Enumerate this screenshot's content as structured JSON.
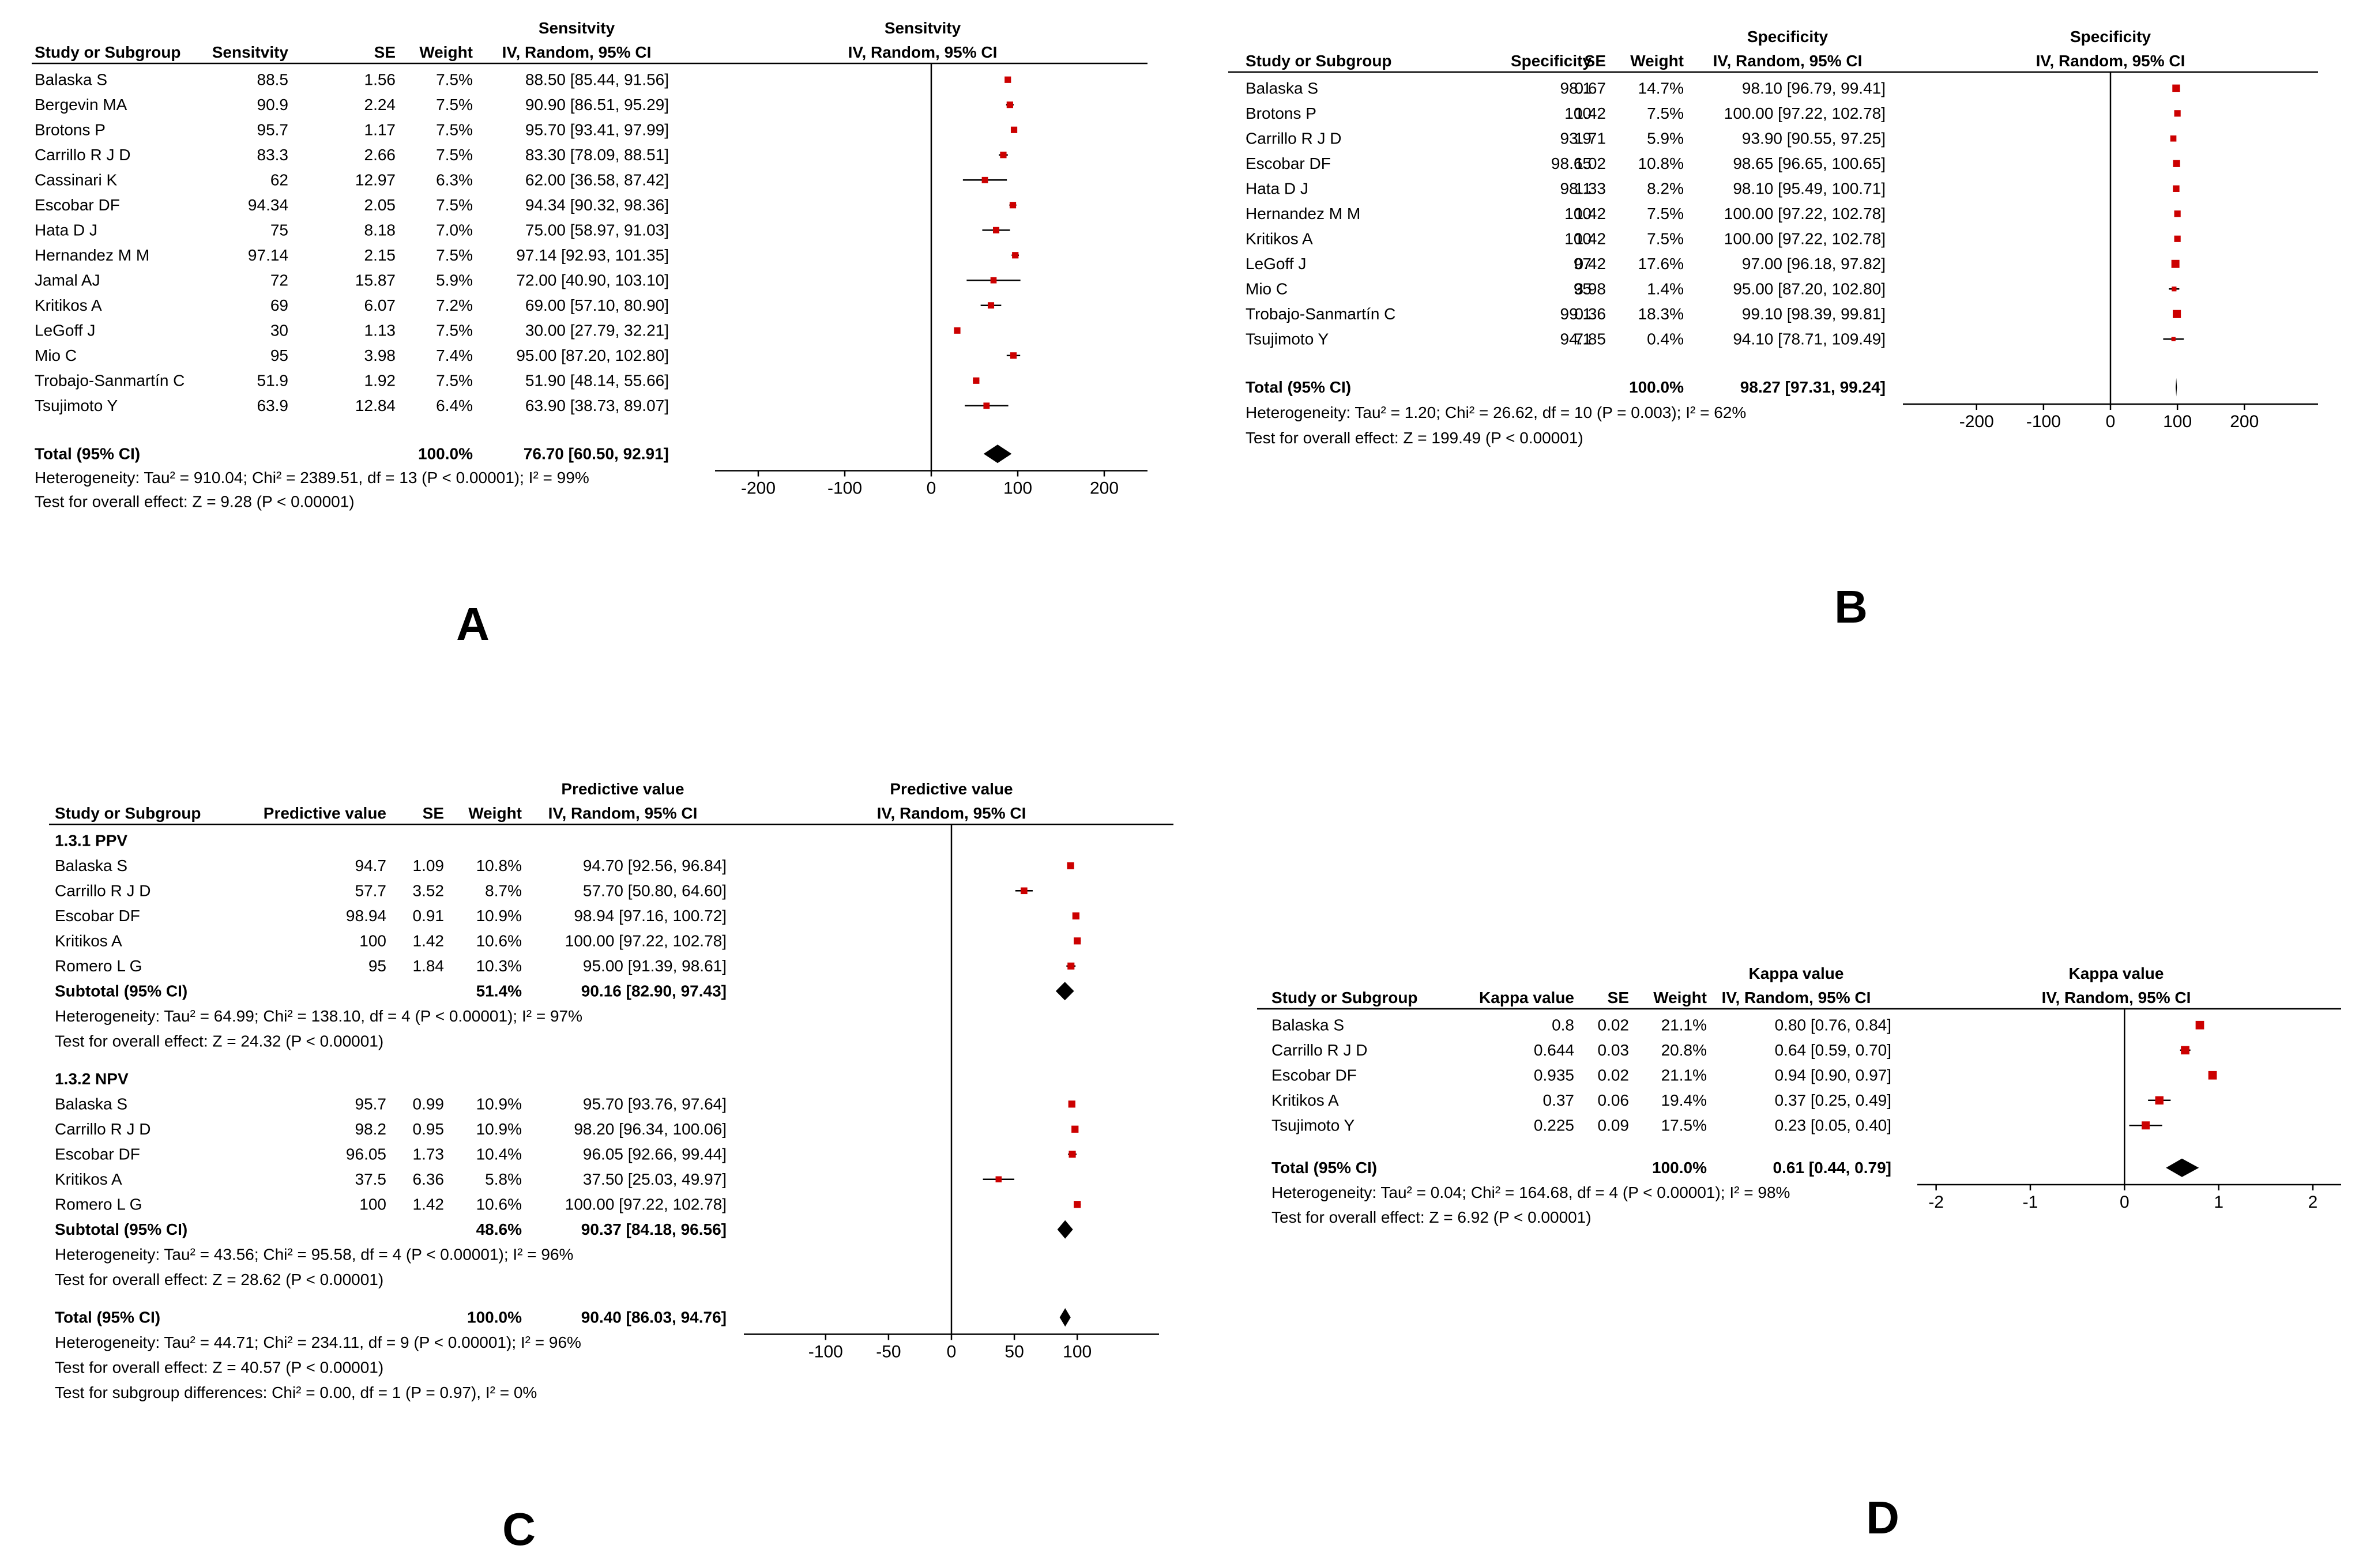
{
  "colors": {
    "marker": "#cc0000",
    "line": "#000000",
    "text": "#000000"
  },
  "chart_data": [
    {
      "id": "A",
      "type": "forest",
      "panel_label": "A",
      "title": "Sensitvity",
      "subtitle": "IV, Random, 95% CI",
      "headers": {
        "study": "Study or Subgroup",
        "value": "Sensitvity",
        "se": "SE",
        "weight": "Weight",
        "ci_top": "Sensitvity",
        "ci": "IV, Random, 95% CI"
      },
      "xlim": [
        -250,
        250
      ],
      "ticks": [
        -200,
        -100,
        0,
        100,
        200
      ],
      "tick_labels": [
        "-200",
        "-100",
        "0",
        "100",
        "200"
      ],
      "sections": [
        {
          "rows": [
            {
              "study": "Balaska S",
              "value": "88.5",
              "se": "1.56",
              "weight": "7.5%",
              "ci_text": "88.50 [85.44, 91.56]",
              "est": 88.5,
              "lo": 85.44,
              "hi": 91.56,
              "w": 7.5
            },
            {
              "study": "Bergevin MA",
              "value": "90.9",
              "se": "2.24",
              "weight": "7.5%",
              "ci_text": "90.90 [86.51, 95.29]",
              "est": 90.9,
              "lo": 86.51,
              "hi": 95.29,
              "w": 7.5
            },
            {
              "study": "Brotons P",
              "value": "95.7",
              "se": "1.17",
              "weight": "7.5%",
              "ci_text": "95.70 [93.41, 97.99]",
              "est": 95.7,
              "lo": 93.41,
              "hi": 97.99,
              "w": 7.5
            },
            {
              "study": "Carrillo R J D",
              "value": "83.3",
              "se": "2.66",
              "weight": "7.5%",
              "ci_text": "83.30 [78.09, 88.51]",
              "est": 83.3,
              "lo": 78.09,
              "hi": 88.51,
              "w": 7.5
            },
            {
              "study": "Cassinari K",
              "value": "62",
              "se": "12.97",
              "weight": "6.3%",
              "ci_text": "62.00 [36.58, 87.42]",
              "est": 62.0,
              "lo": 36.58,
              "hi": 87.42,
              "w": 6.3
            },
            {
              "study": "Escobar DF",
              "value": "94.34",
              "se": "2.05",
              "weight": "7.5%",
              "ci_text": "94.34 [90.32, 98.36]",
              "est": 94.34,
              "lo": 90.32,
              "hi": 98.36,
              "w": 7.5
            },
            {
              "study": "Hata D J",
              "value": "75",
              "se": "8.18",
              "weight": "7.0%",
              "ci_text": "75.00 [58.97, 91.03]",
              "est": 75.0,
              "lo": 58.97,
              "hi": 91.03,
              "w": 7.0
            },
            {
              "study": "Hernandez M M",
              "value": "97.14",
              "se": "2.15",
              "weight": "7.5%",
              "ci_text": "97.14 [92.93, 101.35]",
              "est": 97.14,
              "lo": 92.93,
              "hi": 101.35,
              "w": 7.5
            },
            {
              "study": "Jamal AJ",
              "value": "72",
              "se": "15.87",
              "weight": "5.9%",
              "ci_text": "72.00 [40.90, 103.10]",
              "est": 72.0,
              "lo": 40.9,
              "hi": 103.1,
              "w": 5.9
            },
            {
              "study": "Kritikos A",
              "value": "69",
              "se": "6.07",
              "weight": "7.2%",
              "ci_text": "69.00 [57.10, 80.90]",
              "est": 69.0,
              "lo": 57.1,
              "hi": 80.9,
              "w": 7.2
            },
            {
              "study": "LeGoff J",
              "value": "30",
              "se": "1.13",
              "weight": "7.5%",
              "ci_text": "30.00 [27.79, 32.21]",
              "est": 30.0,
              "lo": 27.79,
              "hi": 32.21,
              "w": 7.5
            },
            {
              "study": "Mio C",
              "value": "95",
              "se": "3.98",
              "weight": "7.4%",
              "ci_text": "95.00 [87.20, 102.80]",
              "est": 95.0,
              "lo": 87.2,
              "hi": 102.8,
              "w": 7.4
            },
            {
              "study": "Trobajo-Sanmartín C",
              "value": "51.9",
              "se": "1.92",
              "weight": "7.5%",
              "ci_text": "51.90 [48.14, 55.66]",
              "est": 51.9,
              "lo": 48.14,
              "hi": 55.66,
              "w": 7.5
            },
            {
              "study": "Tsujimoto Y",
              "value": "63.9",
              "se": "12.84",
              "weight": "6.4%",
              "ci_text": "63.90 [38.73, 89.07]",
              "est": 63.9,
              "lo": 38.73,
              "hi": 89.07,
              "w": 6.4
            }
          ]
        }
      ],
      "total": {
        "label": "Total (95% CI)",
        "weight": "100.0%",
        "ci_text": "76.70 [60.50, 92.91]",
        "est": 76.7,
        "lo": 60.5,
        "hi": 92.91
      },
      "footer": [
        "Heterogeneity: Tau² = 910.04; Chi² = 2389.51, df = 13 (P < 0.00001); I² = 99%",
        "Test for overall effect: Z = 9.28 (P < 0.00001)"
      ]
    },
    {
      "id": "B",
      "type": "forest",
      "panel_label": "B",
      "title": "Specificity",
      "subtitle": "IV, Random, 95% CI",
      "headers": {
        "study": "Study or Subgroup",
        "value": "Specificity",
        "se": "SE",
        "weight": "Weight",
        "ci_top": "Specificity",
        "ci": "IV, Random, 95% CI"
      },
      "xlim": [
        -310,
        310
      ],
      "ticks": [
        -200,
        -100,
        0,
        100,
        200
      ],
      "tick_labels": [
        "-200",
        "-100",
        "0",
        "100",
        "200"
      ],
      "sections": [
        {
          "rows": [
            {
              "study": "Balaska S",
              "value": "98.1",
              "se": "0.67",
              "weight": "14.7%",
              "ci_text": "98.10 [96.79, 99.41]",
              "est": 98.1,
              "lo": 96.79,
              "hi": 99.41,
              "w": 14.7
            },
            {
              "study": "Brotons P",
              "value": "100",
              "se": "1.42",
              "weight": "7.5%",
              "ci_text": "100.00 [97.22, 102.78]",
              "est": 100.0,
              "lo": 97.22,
              "hi": 102.78,
              "w": 7.5
            },
            {
              "study": "Carrillo R J D",
              "value": "93.9",
              "se": "1.71",
              "weight": "5.9%",
              "ci_text": "93.90 [90.55, 97.25]",
              "est": 93.9,
              "lo": 90.55,
              "hi": 97.25,
              "w": 5.9
            },
            {
              "study": "Escobar DF",
              "value": "98.65",
              "se": "1.02",
              "weight": "10.8%",
              "ci_text": "98.65 [96.65, 100.65]",
              "est": 98.65,
              "lo": 96.65,
              "hi": 100.65,
              "w": 10.8
            },
            {
              "study": "Hata D J",
              "value": "98.1",
              "se": "1.33",
              "weight": "8.2%",
              "ci_text": "98.10 [95.49, 100.71]",
              "est": 98.1,
              "lo": 95.49,
              "hi": 100.71,
              "w": 8.2
            },
            {
              "study": "Hernandez M M",
              "value": "100",
              "se": "1.42",
              "weight": "7.5%",
              "ci_text": "100.00 [97.22, 102.78]",
              "est": 100.0,
              "lo": 97.22,
              "hi": 102.78,
              "w": 7.5
            },
            {
              "study": "Kritikos A",
              "value": "100",
              "se": "1.42",
              "weight": "7.5%",
              "ci_text": "100.00 [97.22, 102.78]",
              "est": 100.0,
              "lo": 97.22,
              "hi": 102.78,
              "w": 7.5
            },
            {
              "study": "LeGoff J",
              "value": "97",
              "se": "0.42",
              "weight": "17.6%",
              "ci_text": "97.00 [96.18, 97.82]",
              "est": 97.0,
              "lo": 96.18,
              "hi": 97.82,
              "w": 17.6
            },
            {
              "study": "Mio C",
              "value": "95",
              "se": "3.98",
              "weight": "1.4%",
              "ci_text": "95.00 [87.20, 102.80]",
              "est": 95.0,
              "lo": 87.2,
              "hi": 102.8,
              "w": 1.4
            },
            {
              "study": "Trobajo-Sanmartín C",
              "value": "99.1",
              "se": "0.36",
              "weight": "18.3%",
              "ci_text": "99.10 [98.39, 99.81]",
              "est": 99.1,
              "lo": 98.39,
              "hi": 99.81,
              "w": 18.3
            },
            {
              "study": "Tsujimoto Y",
              "value": "94.1",
              "se": "7.85",
              "weight": "0.4%",
              "ci_text": "94.10 [78.71, 109.49]",
              "est": 94.1,
              "lo": 78.71,
              "hi": 109.49,
              "w": 0.4
            }
          ]
        }
      ],
      "total": {
        "label": "Total (95% CI)",
        "weight": "100.0%",
        "ci_text": "98.27 [97.31, 99.24]",
        "est": 98.27,
        "lo": 97.31,
        "hi": 99.24
      },
      "footer": [
        "Heterogeneity: Tau² = 1.20; Chi² = 26.62, df = 10 (P = 0.003); I² = 62%",
        "Test for overall effect: Z = 199.49 (P < 0.00001)"
      ]
    },
    {
      "id": "C",
      "type": "forest",
      "panel_label": "C",
      "title": "Predictive value",
      "subtitle": "IV, Random, 95% CI",
      "headers": {
        "study": "Study or Subgroup",
        "value": "Predictive value",
        "se": "SE",
        "weight": "Weight",
        "ci_top": "Predictive value",
        "ci": "IV, Random, 95% CI"
      },
      "xlim": [
        -165,
        165
      ],
      "ticks": [
        -100,
        -50,
        0,
        50,
        100
      ],
      "tick_labels": [
        "-100",
        "-50",
        "0",
        "50",
        "100"
      ],
      "sections": [
        {
          "heading": "1.3.1 PPV",
          "rows": [
            {
              "study": "Balaska S",
              "value": "94.7",
              "se": "1.09",
              "weight": "10.8%",
              "ci_text": "94.70 [92.56, 96.84]",
              "est": 94.7,
              "lo": 92.56,
              "hi": 96.84,
              "w": 10.8
            },
            {
              "study": "Carrillo R J D",
              "value": "57.7",
              "se": "3.52",
              "weight": "8.7%",
              "ci_text": "57.70 [50.80, 64.60]",
              "est": 57.7,
              "lo": 50.8,
              "hi": 64.6,
              "w": 8.7
            },
            {
              "study": "Escobar DF",
              "value": "98.94",
              "se": "0.91",
              "weight": "10.9%",
              "ci_text": "98.94 [97.16, 100.72]",
              "est": 98.94,
              "lo": 97.16,
              "hi": 100.72,
              "w": 10.9
            },
            {
              "study": "Kritikos A",
              "value": "100",
              "se": "1.42",
              "weight": "10.6%",
              "ci_text": "100.00 [97.22, 102.78]",
              "est": 100.0,
              "lo": 97.22,
              "hi": 102.78,
              "w": 10.6
            },
            {
              "study": "Romero L G",
              "value": "95",
              "se": "1.84",
              "weight": "10.3%",
              "ci_text": "95.00 [91.39, 98.61]",
              "est": 95.0,
              "lo": 91.39,
              "hi": 98.61,
              "w": 10.3
            }
          ],
          "subtotal": {
            "label": "Subtotal (95% CI)",
            "weight": "51.4%",
            "ci_text": "90.16 [82.90, 97.43]",
            "est": 90.16,
            "lo": 82.9,
            "hi": 97.43
          },
          "notes": [
            "Heterogeneity: Tau² = 64.99; Chi² = 138.10, df = 4 (P < 0.00001); I² = 97%",
            "Test for overall effect: Z = 24.32 (P < 0.00001)"
          ]
        },
        {
          "heading": "1.3.2 NPV",
          "rows": [
            {
              "study": "Balaska S",
              "value": "95.7",
              "se": "0.99",
              "weight": "10.9%",
              "ci_text": "95.70 [93.76, 97.64]",
              "est": 95.7,
              "lo": 93.76,
              "hi": 97.64,
              "w": 10.9
            },
            {
              "study": "Carrillo R J D",
              "value": "98.2",
              "se": "0.95",
              "weight": "10.9%",
              "ci_text": "98.20 [96.34, 100.06]",
              "est": 98.2,
              "lo": 96.34,
              "hi": 100.06,
              "w": 10.9
            },
            {
              "study": "Escobar DF",
              "value": "96.05",
              "se": "1.73",
              "weight": "10.4%",
              "ci_text": "96.05 [92.66, 99.44]",
              "est": 96.05,
              "lo": 92.66,
              "hi": 99.44,
              "w": 10.4
            },
            {
              "study": "Kritikos A",
              "value": "37.5",
              "se": "6.36",
              "weight": "5.8%",
              "ci_text": "37.50 [25.03, 49.97]",
              "est": 37.5,
              "lo": 25.03,
              "hi": 49.97,
              "w": 5.8
            },
            {
              "study": "Romero L G",
              "value": "100",
              "se": "1.42",
              "weight": "10.6%",
              "ci_text": "100.00 [97.22, 102.78]",
              "est": 100.0,
              "lo": 97.22,
              "hi": 102.78,
              "w": 10.6
            }
          ],
          "subtotal": {
            "label": "Subtotal (95% CI)",
            "weight": "48.6%",
            "ci_text": "90.37 [84.18, 96.56]",
            "est": 90.37,
            "lo": 84.18,
            "hi": 96.56
          },
          "notes": [
            "Heterogeneity: Tau² = 43.56; Chi² = 95.58, df = 4 (P < 0.00001); I² = 96%",
            "Test for overall effect: Z = 28.62 (P < 0.00001)"
          ]
        }
      ],
      "total": {
        "label": "Total (95% CI)",
        "weight": "100.0%",
        "ci_text": "90.40 [86.03, 94.76]",
        "est": 90.4,
        "lo": 86.03,
        "hi": 94.76
      },
      "footer": [
        "Heterogeneity: Tau² = 44.71; Chi² = 234.11, df = 9 (P < 0.00001); I² = 96%",
        "Test for overall effect: Z = 40.57 (P < 0.00001)",
        "Test for subgroup differences: Chi² = 0.00, df = 1 (P = 0.97), I² = 0%"
      ]
    },
    {
      "id": "D",
      "type": "forest",
      "panel_label": "D",
      "title": "Kappa value",
      "subtitle": "IV, Random, 95% CI",
      "headers": {
        "study": "Study or Subgroup",
        "value": "Kappa value",
        "se": "SE",
        "weight": "Weight",
        "ci_top": "Kappa value",
        "ci": "IV, Random, 95% CI"
      },
      "xlim": [
        -2.2,
        2.3
      ],
      "ticks": [
        -2,
        -1,
        0,
        1,
        2
      ],
      "tick_labels": [
        "-2",
        "-1",
        "0",
        "1",
        "2"
      ],
      "sections": [
        {
          "rows": [
            {
              "study": "Balaska S",
              "value": "0.8",
              "se": "0.02",
              "weight": "21.1%",
              "ci_text": "0.80 [0.76, 0.84]",
              "est": 0.8,
              "lo": 0.76,
              "hi": 0.84,
              "w": 21.1
            },
            {
              "study": "Carrillo R J D",
              "value": "0.644",
              "se": "0.03",
              "weight": "20.8%",
              "ci_text": "0.64 [0.59, 0.70]",
              "est": 0.644,
              "lo": 0.59,
              "hi": 0.7,
              "w": 20.8
            },
            {
              "study": "Escobar DF",
              "value": "0.935",
              "se": "0.02",
              "weight": "21.1%",
              "ci_text": "0.94 [0.90, 0.97]",
              "est": 0.935,
              "lo": 0.9,
              "hi": 0.97,
              "w": 21.1
            },
            {
              "study": "Kritikos A",
              "value": "0.37",
              "se": "0.06",
              "weight": "19.4%",
              "ci_text": "0.37 [0.25, 0.49]",
              "est": 0.37,
              "lo": 0.25,
              "hi": 0.49,
              "w": 19.4
            },
            {
              "study": "Tsujimoto Y",
              "value": "0.225",
              "se": "0.09",
              "weight": "17.5%",
              "ci_text": "0.23 [0.05, 0.40]",
              "est": 0.225,
              "lo": 0.05,
              "hi": 0.4,
              "w": 17.5
            }
          ]
        }
      ],
      "total": {
        "label": "Total (95% CI)",
        "weight": "100.0%",
        "ci_text": "0.61 [0.44, 0.79]",
        "est": 0.61,
        "lo": 0.44,
        "hi": 0.79
      },
      "footer": [
        "Heterogeneity: Tau² = 0.04; Chi² = 164.68, df = 4 (P < 0.00001); I² = 98%",
        "Test for overall effect: Z = 6.92 (P < 0.00001)"
      ]
    }
  ]
}
